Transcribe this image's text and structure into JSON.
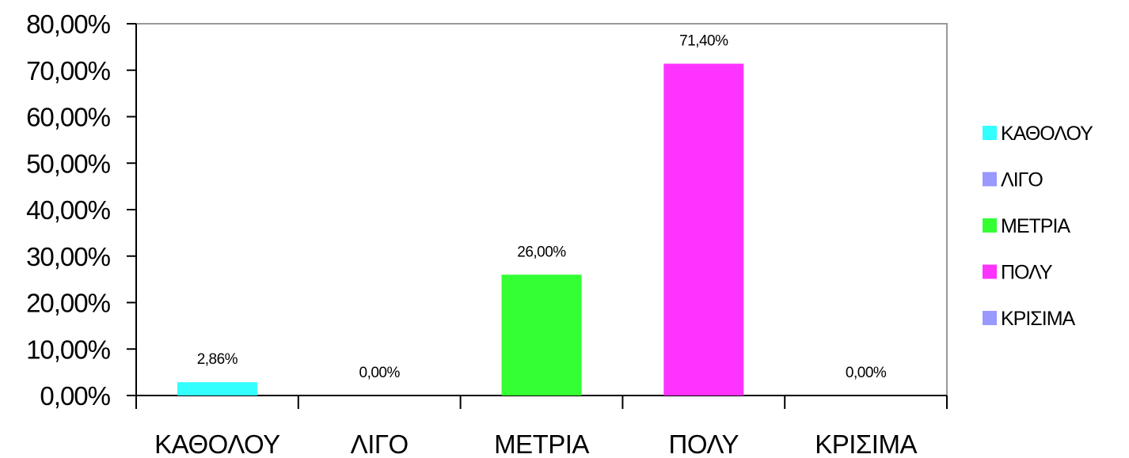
{
  "chart_data": {
    "type": "bar",
    "categories": [
      "ΚΑΘΟΛΟΥ",
      "ΛΙΓΟ",
      "ΜΕΤΡΙΑ",
      "ΠΟΛΥ",
      "ΚΡΙΣΙΜΑ"
    ],
    "values": [
      2.86,
      0.0,
      26.0,
      71.4,
      0.0
    ],
    "data_labels": [
      "2,86%",
      "0,00%",
      "26,00%",
      "71,40%",
      "0,00%"
    ],
    "colors": [
      "#33ffff",
      "#9999ff",
      "#33ff33",
      "#ff33ff",
      "#9999ff"
    ],
    "ylim": [
      0,
      80
    ],
    "yticks": [
      0,
      10,
      20,
      30,
      40,
      50,
      60,
      70,
      80
    ],
    "ytick_labels": [
      "0,00%",
      "10,00%",
      "20,00%",
      "30,00%",
      "40,00%",
      "50,00%",
      "60,00%",
      "70,00%",
      "80,00%"
    ],
    "title": "",
    "xlabel": "",
    "ylabel": "",
    "grid": false,
    "legend": {
      "position": "right",
      "entries": [
        "ΚΑΘΟΛΟΥ",
        "ΛΙΓΟ",
        "ΜΕΤΡΙΑ",
        "ΠΟΛΥ",
        "ΚΡΙΣΙΜΑ"
      ]
    }
  }
}
